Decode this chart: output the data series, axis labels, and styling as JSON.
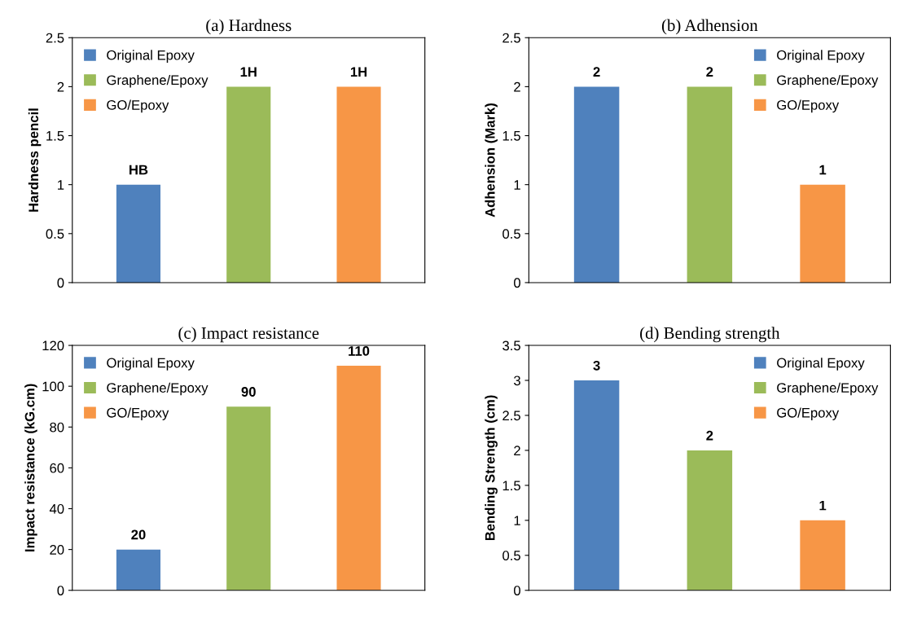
{
  "chart_data": [
    {
      "type": "bar",
      "title": "(a) Hardness",
      "ylabel": "Hardness pencil",
      "categories": [
        null,
        null,
        null
      ],
      "ylim": [
        0,
        2.5
      ],
      "yticks": [
        0,
        0.5,
        1,
        1.5,
        2,
        2.5
      ],
      "legend": "top left",
      "grid": false,
      "annotations": [
        {
          "text": "HB",
          "y": 1
        },
        {
          "text": "1H",
          "y": 2
        },
        {
          "text": "1H",
          "y": 2
        }
      ],
      "series": [
        {
          "name": "Original Epoxy",
          "color": "#4f81bd",
          "values": [
            1,
            null,
            null
          ]
        },
        {
          "name": "Graphene/Epoxy",
          "color": "#9bbb59",
          "values": [
            null,
            2,
            null
          ]
        },
        {
          "name": "GO/Epoxy",
          "color": "#f79646",
          "values": [
            null,
            null,
            2
          ]
        }
      ]
    },
    {
      "type": "bar",
      "title": "(b) Adhension",
      "ylabel": "Adhension (Mark)",
      "categories": [
        null,
        null,
        null
      ],
      "ylim": [
        0,
        2.5
      ],
      "yticks": [
        0,
        0.5,
        1,
        1.5,
        2,
        2.5
      ],
      "legend": "top right",
      "grid": false,
      "data_labels": true,
      "series": [
        {
          "name": "Original Epoxy",
          "color": "#4f81bd",
          "values": [
            2,
            null,
            null
          ]
        },
        {
          "name": "Graphene/Epoxy",
          "color": "#9bbb59",
          "values": [
            null,
            2,
            null
          ]
        },
        {
          "name": "GO/Epoxy",
          "color": "#f79646",
          "values": [
            null,
            null,
            1
          ]
        }
      ]
    },
    {
      "type": "bar",
      "title": "(c) Impact resistance",
      "ylabel": "Impact resistance (kG.cm)",
      "categories": [
        null,
        null,
        null
      ],
      "ylim": [
        0,
        120
      ],
      "yticks": [
        0,
        20,
        40,
        60,
        80,
        100,
        120
      ],
      "legend": "top left",
      "grid": false,
      "data_labels": true,
      "series": [
        {
          "name": "Original Epoxy",
          "color": "#4f81bd",
          "values": [
            20,
            null,
            null
          ]
        },
        {
          "name": "Graphene/Epoxy",
          "color": "#9bbb59",
          "values": [
            null,
            90,
            null
          ]
        },
        {
          "name": "GO/Epoxy",
          "color": "#f79646",
          "values": [
            null,
            null,
            110
          ]
        }
      ]
    },
    {
      "type": "bar",
      "title": "(d) Bending strength",
      "ylabel": "Bending Strength (cm)",
      "categories": [
        null,
        null,
        null
      ],
      "ylim": [
        0,
        3.5
      ],
      "yticks": [
        0,
        0.5,
        1,
        1.5,
        2,
        2.5,
        3,
        3.5
      ],
      "legend": "top right",
      "grid": false,
      "data_labels": true,
      "series": [
        {
          "name": "Original Epoxy",
          "color": "#4f81bd",
          "values": [
            3,
            null,
            null
          ]
        },
        {
          "name": "Graphene/Epoxy",
          "color": "#9bbb59",
          "values": [
            null,
            2,
            null
          ]
        },
        {
          "name": "GO/Epoxy",
          "color": "#f79646",
          "values": [
            null,
            null,
            1
          ]
        }
      ]
    }
  ]
}
